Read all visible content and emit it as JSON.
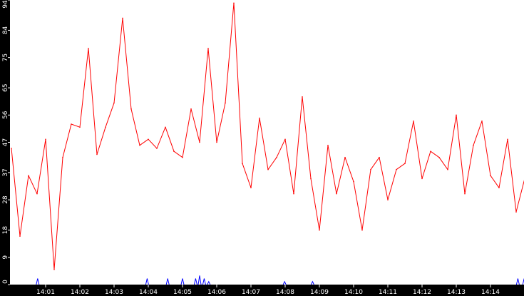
{
  "chart_data": {
    "type": "line",
    "title": "",
    "xlabel": "",
    "ylabel": "",
    "ylim": [
      0,
      94
    ],
    "xlim": [
      "14:00",
      "14:15"
    ],
    "grid": false,
    "legend": "none",
    "y_ticks": [
      {
        "value": 0,
        "label": "0"
      },
      {
        "value": 9,
        "label": "9"
      },
      {
        "value": 18,
        "label": "18"
      },
      {
        "value": 28,
        "label": "28"
      },
      {
        "value": 37,
        "label": "37"
      },
      {
        "value": 47,
        "label": "47"
      },
      {
        "value": 56,
        "label": "56"
      },
      {
        "value": 65,
        "label": "65"
      },
      {
        "value": 75,
        "label": "75"
      },
      {
        "value": 84,
        "label": "84"
      },
      {
        "value": 94,
        "label": "94"
      }
    ],
    "x_ticks": [
      {
        "minute": 1,
        "label": "14:01"
      },
      {
        "minute": 2,
        "label": "14:02"
      },
      {
        "minute": 3,
        "label": "14:03"
      },
      {
        "minute": 4,
        "label": "14:04"
      },
      {
        "minute": 5,
        "label": "14:05"
      },
      {
        "minute": 6,
        "label": "14:06"
      },
      {
        "minute": 7,
        "label": "14:07"
      },
      {
        "minute": 8,
        "label": "14:08"
      },
      {
        "minute": 9,
        "label": "14:09"
      },
      {
        "minute": 10,
        "label": "14:10"
      },
      {
        "minute": 11,
        "label": "14:11"
      },
      {
        "minute": 12,
        "label": "14:12"
      },
      {
        "minute": 13,
        "label": "14:13"
      },
      {
        "minute": 14,
        "label": "14:14"
      }
    ],
    "series": [
      {
        "color": "#ff0000",
        "x": [
          "14:00:00",
          "14:00:15",
          "14:00:30",
          "14:00:45",
          "14:01:00",
          "14:01:15",
          "14:01:30",
          "14:01:45",
          "14:02:00",
          "14:02:15",
          "14:02:30",
          "14:02:45",
          "14:03:00",
          "14:03:15",
          "14:03:30",
          "14:03:45",
          "14:04:00",
          "14:04:15",
          "14:04:30",
          "14:04:45",
          "14:05:00",
          "14:05:15",
          "14:05:30",
          "14:05:45",
          "14:06:00",
          "14:06:15",
          "14:06:30",
          "14:06:45",
          "14:07:00",
          "14:07:15",
          "14:07:30",
          "14:07:45",
          "14:08:00",
          "14:08:15",
          "14:08:30",
          "14:08:45",
          "14:09:00",
          "14:09:15",
          "14:09:30",
          "14:09:45",
          "14:10:00",
          "14:10:15",
          "14:10:30",
          "14:10:45",
          "14:11:00",
          "14:11:15",
          "14:11:30",
          "14:11:45",
          "14:12:00",
          "14:12:15",
          "14:12:30",
          "14:12:45",
          "14:13:00",
          "14:13:15",
          "14:13:30",
          "14:13:45",
          "14:14:00",
          "14:14:15",
          "14:14:30",
          "14:14:45",
          "14:15:00"
        ],
        "values": [
          45,
          16,
          36,
          30,
          48,
          5,
          42,
          53,
          52,
          78,
          43,
          52,
          60,
          88,
          58,
          46,
          48,
          45,
          52,
          44,
          42,
          58,
          47,
          78,
          47,
          60,
          93,
          40,
          32,
          55,
          38,
          42,
          48,
          30,
          62,
          35,
          18,
          46,
          30,
          42,
          34,
          18,
          38,
          42,
          28,
          38,
          40,
          54,
          35,
          44,
          42,
          38,
          56,
          30,
          46,
          54,
          36,
          32,
          48,
          24,
          35
        ]
      },
      {
        "color": "#0000ff",
        "x": [
          "14:00:46",
          "14:03:58",
          "14:04:34",
          "14:05:00",
          "14:05:23",
          "14:05:30",
          "14:05:38",
          "14:05:46",
          "14:07:59",
          "14:08:48",
          "14:14:48",
          "14:14:59"
        ],
        "values": [
          2,
          2,
          2,
          2,
          2,
          3,
          2,
          1,
          1,
          1,
          2,
          2
        ]
      }
    ]
  }
}
